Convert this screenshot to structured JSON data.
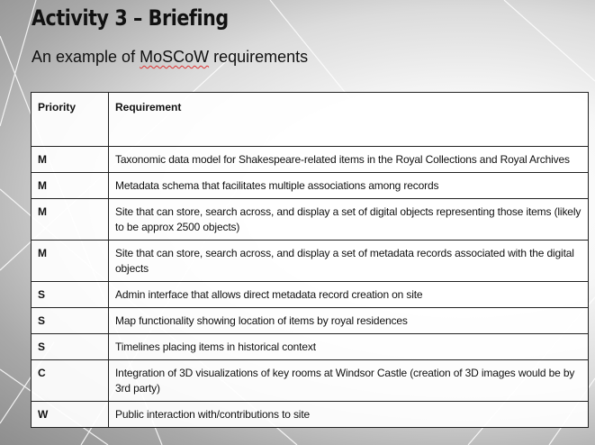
{
  "slide": {
    "title": "Activity 3 – Briefing",
    "subtitle_prefix": "An example of ",
    "subtitle_term": "MoSCoW",
    "subtitle_suffix": " requirements"
  },
  "table": {
    "headers": [
      "Priority",
      "Requirement"
    ],
    "rows": [
      {
        "priority": "M",
        "requirement": "Taxonomic data model for Shakespeare-related items in the Royal Collections and Royal Archives"
      },
      {
        "priority": "M",
        "requirement": "Metadata schema that facilitates multiple associations among records"
      },
      {
        "priority": "M",
        "requirement": "Site that can store, search across, and display a set of digital objects representing those items (likely to be approx 2500 objects)"
      },
      {
        "priority": "M",
        "requirement": "Site that can store, search across, and display a set of metadata records associated with the digital objects"
      },
      {
        "priority": "S",
        "requirement": "Admin interface that allows direct metadata record creation on site"
      },
      {
        "priority": "S",
        "requirement": "Map functionality showing location of items by royal residences"
      },
      {
        "priority": "S",
        "requirement": "Timelines placing items in historical context"
      },
      {
        "priority": "C",
        "requirement": "Integration of 3D visualizations of key rooms at Windsor Castle (creation of 3D images would be by 3rd party)"
      },
      {
        "priority": "W",
        "requirement": "Public interaction with/contributions to site"
      }
    ]
  }
}
